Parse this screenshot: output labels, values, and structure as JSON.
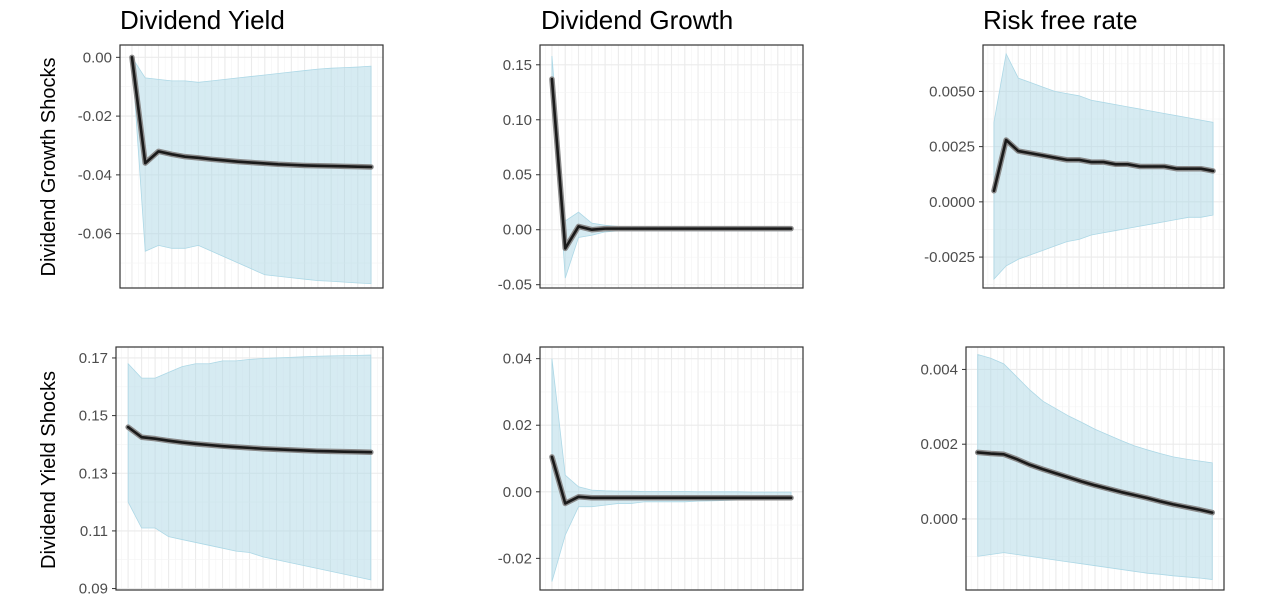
{
  "column_titles": [
    "Dividend Yield",
    "Dividend Growth",
    "Risk free rate"
  ],
  "row_labels": [
    "Dividend Growth Shocks",
    "Dividend Yield Shocks"
  ],
  "colors": {
    "band": "#add8e6",
    "line": "#1a1a1a",
    "line_halo": "#8a8a8a",
    "major_grid": "#ebebeb",
    "minor_grid": "#f4f4f4",
    "panel_border": "#333333",
    "tick_text": "#4d4d4d"
  },
  "chart_data": [
    {
      "type": "line",
      "panel": "Dividend Growth Shocks / Dividend Yield",
      "x": [
        1,
        2,
        3,
        4,
        5,
        6,
        7,
        8,
        9,
        10,
        11,
        12,
        13,
        14,
        15,
        16,
        17,
        18,
        19
      ],
      "y": [
        0.0,
        -0.036,
        -0.032,
        -0.033,
        -0.0338,
        -0.0342,
        -0.0347,
        -0.0351,
        -0.0355,
        -0.0358,
        -0.0361,
        -0.0364,
        -0.0366,
        -0.0368,
        -0.0369,
        -0.037,
        -0.0371,
        -0.0372,
        -0.0373
      ],
      "lower": [
        0.0,
        -0.066,
        -0.064,
        -0.065,
        -0.065,
        -0.064,
        -0.066,
        -0.068,
        -0.07,
        -0.072,
        -0.074,
        -0.0745,
        -0.075,
        -0.0755,
        -0.076,
        -0.0762,
        -0.0765,
        -0.0768,
        -0.077
      ],
      "upper": [
        0.0,
        -0.007,
        -0.0075,
        -0.008,
        -0.008,
        -0.0085,
        -0.008,
        -0.0075,
        -0.007,
        -0.0065,
        -0.006,
        -0.0055,
        -0.005,
        -0.0045,
        -0.004,
        -0.0037,
        -0.0035,
        -0.0033,
        -0.003
      ],
      "ylim": [
        -0.0785,
        0.0042
      ],
      "yticks": [
        -0.06,
        -0.04,
        -0.02,
        0.0
      ],
      "ytick_labels": [
        "-0.06",
        "-0.04",
        "-0.02",
        "0.00"
      ],
      "xlabel": "",
      "ylabel": "",
      "grid": true
    },
    {
      "type": "line",
      "panel": "Dividend Growth Shocks / Dividend Growth",
      "x": [
        1,
        2,
        3,
        4,
        5,
        6,
        7,
        8,
        9,
        10,
        11,
        12,
        13,
        14,
        15,
        16,
        17,
        18,
        19
      ],
      "y": [
        0.137,
        -0.017,
        0.003,
        0.0,
        0.001,
        0.001,
        0.001,
        0.001,
        0.001,
        0.001,
        0.001,
        0.001,
        0.001,
        0.001,
        0.001,
        0.001,
        0.001,
        0.001,
        0.001
      ],
      "lower": [
        0.137,
        -0.044,
        -0.007,
        -0.005,
        -0.002,
        -0.001,
        -0.001,
        -0.001,
        -0.001,
        -0.001,
        -0.001,
        -0.001,
        -0.001,
        -0.001,
        -0.001,
        -0.001,
        -0.001,
        -0.001,
        -0.001
      ],
      "upper": [
        0.158,
        0.008,
        0.016,
        0.006,
        0.004,
        0.003,
        0.003,
        0.003,
        0.003,
        0.003,
        0.003,
        0.003,
        0.003,
        0.003,
        0.003,
        0.003,
        0.003,
        0.003,
        0.003
      ],
      "ylim": [
        -0.053,
        0.168
      ],
      "yticks": [
        -0.05,
        0.0,
        0.05,
        0.1,
        0.15
      ],
      "ytick_labels": [
        "-0.05",
        "0.00",
        "0.05",
        "0.10",
        "0.15"
      ],
      "xlabel": "",
      "ylabel": "",
      "grid": true
    },
    {
      "type": "line",
      "panel": "Dividend Growth Shocks / Risk free rate",
      "x": [
        1,
        2,
        3,
        4,
        5,
        6,
        7,
        8,
        9,
        10,
        11,
        12,
        13,
        14,
        15,
        16,
        17,
        18,
        19
      ],
      "y": [
        0.0005,
        0.0028,
        0.0023,
        0.0022,
        0.0021,
        0.002,
        0.0019,
        0.0019,
        0.0018,
        0.0018,
        0.0017,
        0.0017,
        0.0016,
        0.0016,
        0.0016,
        0.0015,
        0.0015,
        0.0015,
        0.0014
      ],
      "lower": [
        -0.0035,
        -0.0029,
        -0.0026,
        -0.0024,
        -0.0022,
        -0.002,
        -0.0018,
        -0.0017,
        -0.0015,
        -0.0014,
        -0.0013,
        -0.0012,
        -0.0011,
        -0.001,
        -0.0009,
        -0.0008,
        -0.0007,
        -0.0007,
        -0.0006
      ],
      "upper": [
        0.0036,
        0.0067,
        0.0056,
        0.0054,
        0.0052,
        0.005,
        0.0049,
        0.0048,
        0.0046,
        0.0045,
        0.0044,
        0.0043,
        0.0042,
        0.0041,
        0.004,
        0.0039,
        0.0038,
        0.0037,
        0.0036
      ],
      "ylim": [
        -0.0039,
        0.0071
      ],
      "yticks": [
        -0.0025,
        0.0,
        0.0025,
        0.005
      ],
      "ytick_labels": [
        "-0.0025",
        "0.0000",
        "0.0025",
        "0.0050"
      ],
      "xlabel": "",
      "ylabel": "",
      "grid": true
    },
    {
      "type": "line",
      "panel": "Dividend Yield Shocks / Dividend Yield",
      "x": [
        1,
        2,
        3,
        4,
        5,
        6,
        7,
        8,
        9,
        10,
        11,
        12,
        13,
        14,
        15,
        16,
        17,
        18,
        19
      ],
      "y": [
        0.146,
        0.1425,
        0.142,
        0.1413,
        0.1407,
        0.1402,
        0.1398,
        0.1394,
        0.1391,
        0.1388,
        0.1385,
        0.1383,
        0.1381,
        0.1379,
        0.1377,
        0.1376,
        0.1375,
        0.1374,
        0.1373
      ],
      "lower": [
        0.12,
        0.111,
        0.111,
        0.108,
        0.107,
        0.106,
        0.105,
        0.104,
        0.103,
        0.1025,
        0.101,
        0.1,
        0.099,
        0.098,
        0.097,
        0.096,
        0.095,
        0.094,
        0.093
      ],
      "upper": [
        0.168,
        0.163,
        0.163,
        0.165,
        0.167,
        0.168,
        0.168,
        0.169,
        0.169,
        0.1695,
        0.1698,
        0.17,
        0.1702,
        0.1704,
        0.1706,
        0.1707,
        0.1708,
        0.1709,
        0.171
      ],
      "ylim": [
        0.0895,
        0.1738
      ],
      "yticks": [
        0.09,
        0.11,
        0.13,
        0.15,
        0.17
      ],
      "ytick_labels": [
        "0.09",
        "0.11",
        "0.13",
        "0.15",
        "0.17"
      ],
      "xlabel": "",
      "ylabel": "",
      "grid": true
    },
    {
      "type": "line",
      "panel": "Dividend Yield Shocks / Dividend Growth",
      "x": [
        1,
        2,
        3,
        4,
        5,
        6,
        7,
        8,
        9,
        10,
        11,
        12,
        13,
        14,
        15,
        16,
        17,
        18,
        19
      ],
      "y": [
        0.0105,
        -0.0035,
        -0.0015,
        -0.0018,
        -0.0018,
        -0.0018,
        -0.0018,
        -0.0018,
        -0.0018,
        -0.0018,
        -0.0018,
        -0.0018,
        -0.0018,
        -0.0018,
        -0.0018,
        -0.0018,
        -0.0018,
        -0.0018,
        -0.0018
      ],
      "lower": [
        -0.027,
        -0.013,
        -0.0045,
        -0.0045,
        -0.004,
        -0.0035,
        -0.0035,
        -0.003,
        -0.003,
        -0.003,
        -0.003,
        -0.0028,
        -0.0027,
        -0.0026,
        -0.0025,
        -0.0024,
        -0.0023,
        -0.0023,
        -0.0022
      ],
      "upper": [
        0.04,
        0.005,
        0.0015,
        0.0005,
        0.0003,
        0.0002,
        0.0002,
        0.0001,
        0.0001,
        0.0001,
        0.0001,
        0.0,
        0.0,
        0.0,
        0.0,
        -0.0001,
        -0.0001,
        -0.0001,
        -0.0001
      ],
      "ylim": [
        -0.0295,
        0.0435
      ],
      "yticks": [
        -0.02,
        0.0,
        0.02,
        0.04
      ],
      "ytick_labels": [
        "-0.02",
        "0.00",
        "0.02",
        "0.04"
      ],
      "xlabel": "",
      "ylabel": "",
      "grid": true
    },
    {
      "type": "line",
      "panel": "Dividend Yield Shocks / Risk free rate",
      "x": [
        1,
        2,
        3,
        4,
        5,
        6,
        7,
        8,
        9,
        10,
        11,
        12,
        13,
        14,
        15,
        16,
        17,
        18,
        19
      ],
      "y": [
        0.00178,
        0.00175,
        0.00173,
        0.0016,
        0.00145,
        0.00133,
        0.00122,
        0.00111,
        0.001,
        0.0009,
        0.00081,
        0.00072,
        0.00064,
        0.00056,
        0.00047,
        0.00039,
        0.00032,
        0.00025,
        0.00017
      ],
      "lower": [
        -0.001,
        -0.00095,
        -0.0009,
        -0.00095,
        -0.001,
        -0.00105,
        -0.0011,
        -0.00115,
        -0.0012,
        -0.00125,
        -0.0013,
        -0.00135,
        -0.0014,
        -0.00145,
        -0.00148,
        -0.00152,
        -0.00155,
        -0.00158,
        -0.00162
      ],
      "upper": [
        0.0044,
        0.0043,
        0.00415,
        0.0038,
        0.00345,
        0.00315,
        0.00295,
        0.00275,
        0.00258,
        0.0024,
        0.00225,
        0.0021,
        0.00196,
        0.00185,
        0.00175,
        0.00166,
        0.0016,
        0.00155,
        0.0015
      ],
      "ylim": [
        -0.0019,
        0.0046
      ],
      "yticks": [
        0.0,
        0.002,
        0.004
      ],
      "ytick_labels": [
        "0.000",
        "0.002",
        "0.004"
      ],
      "xlabel": "",
      "ylabel": "",
      "grid": true
    }
  ]
}
